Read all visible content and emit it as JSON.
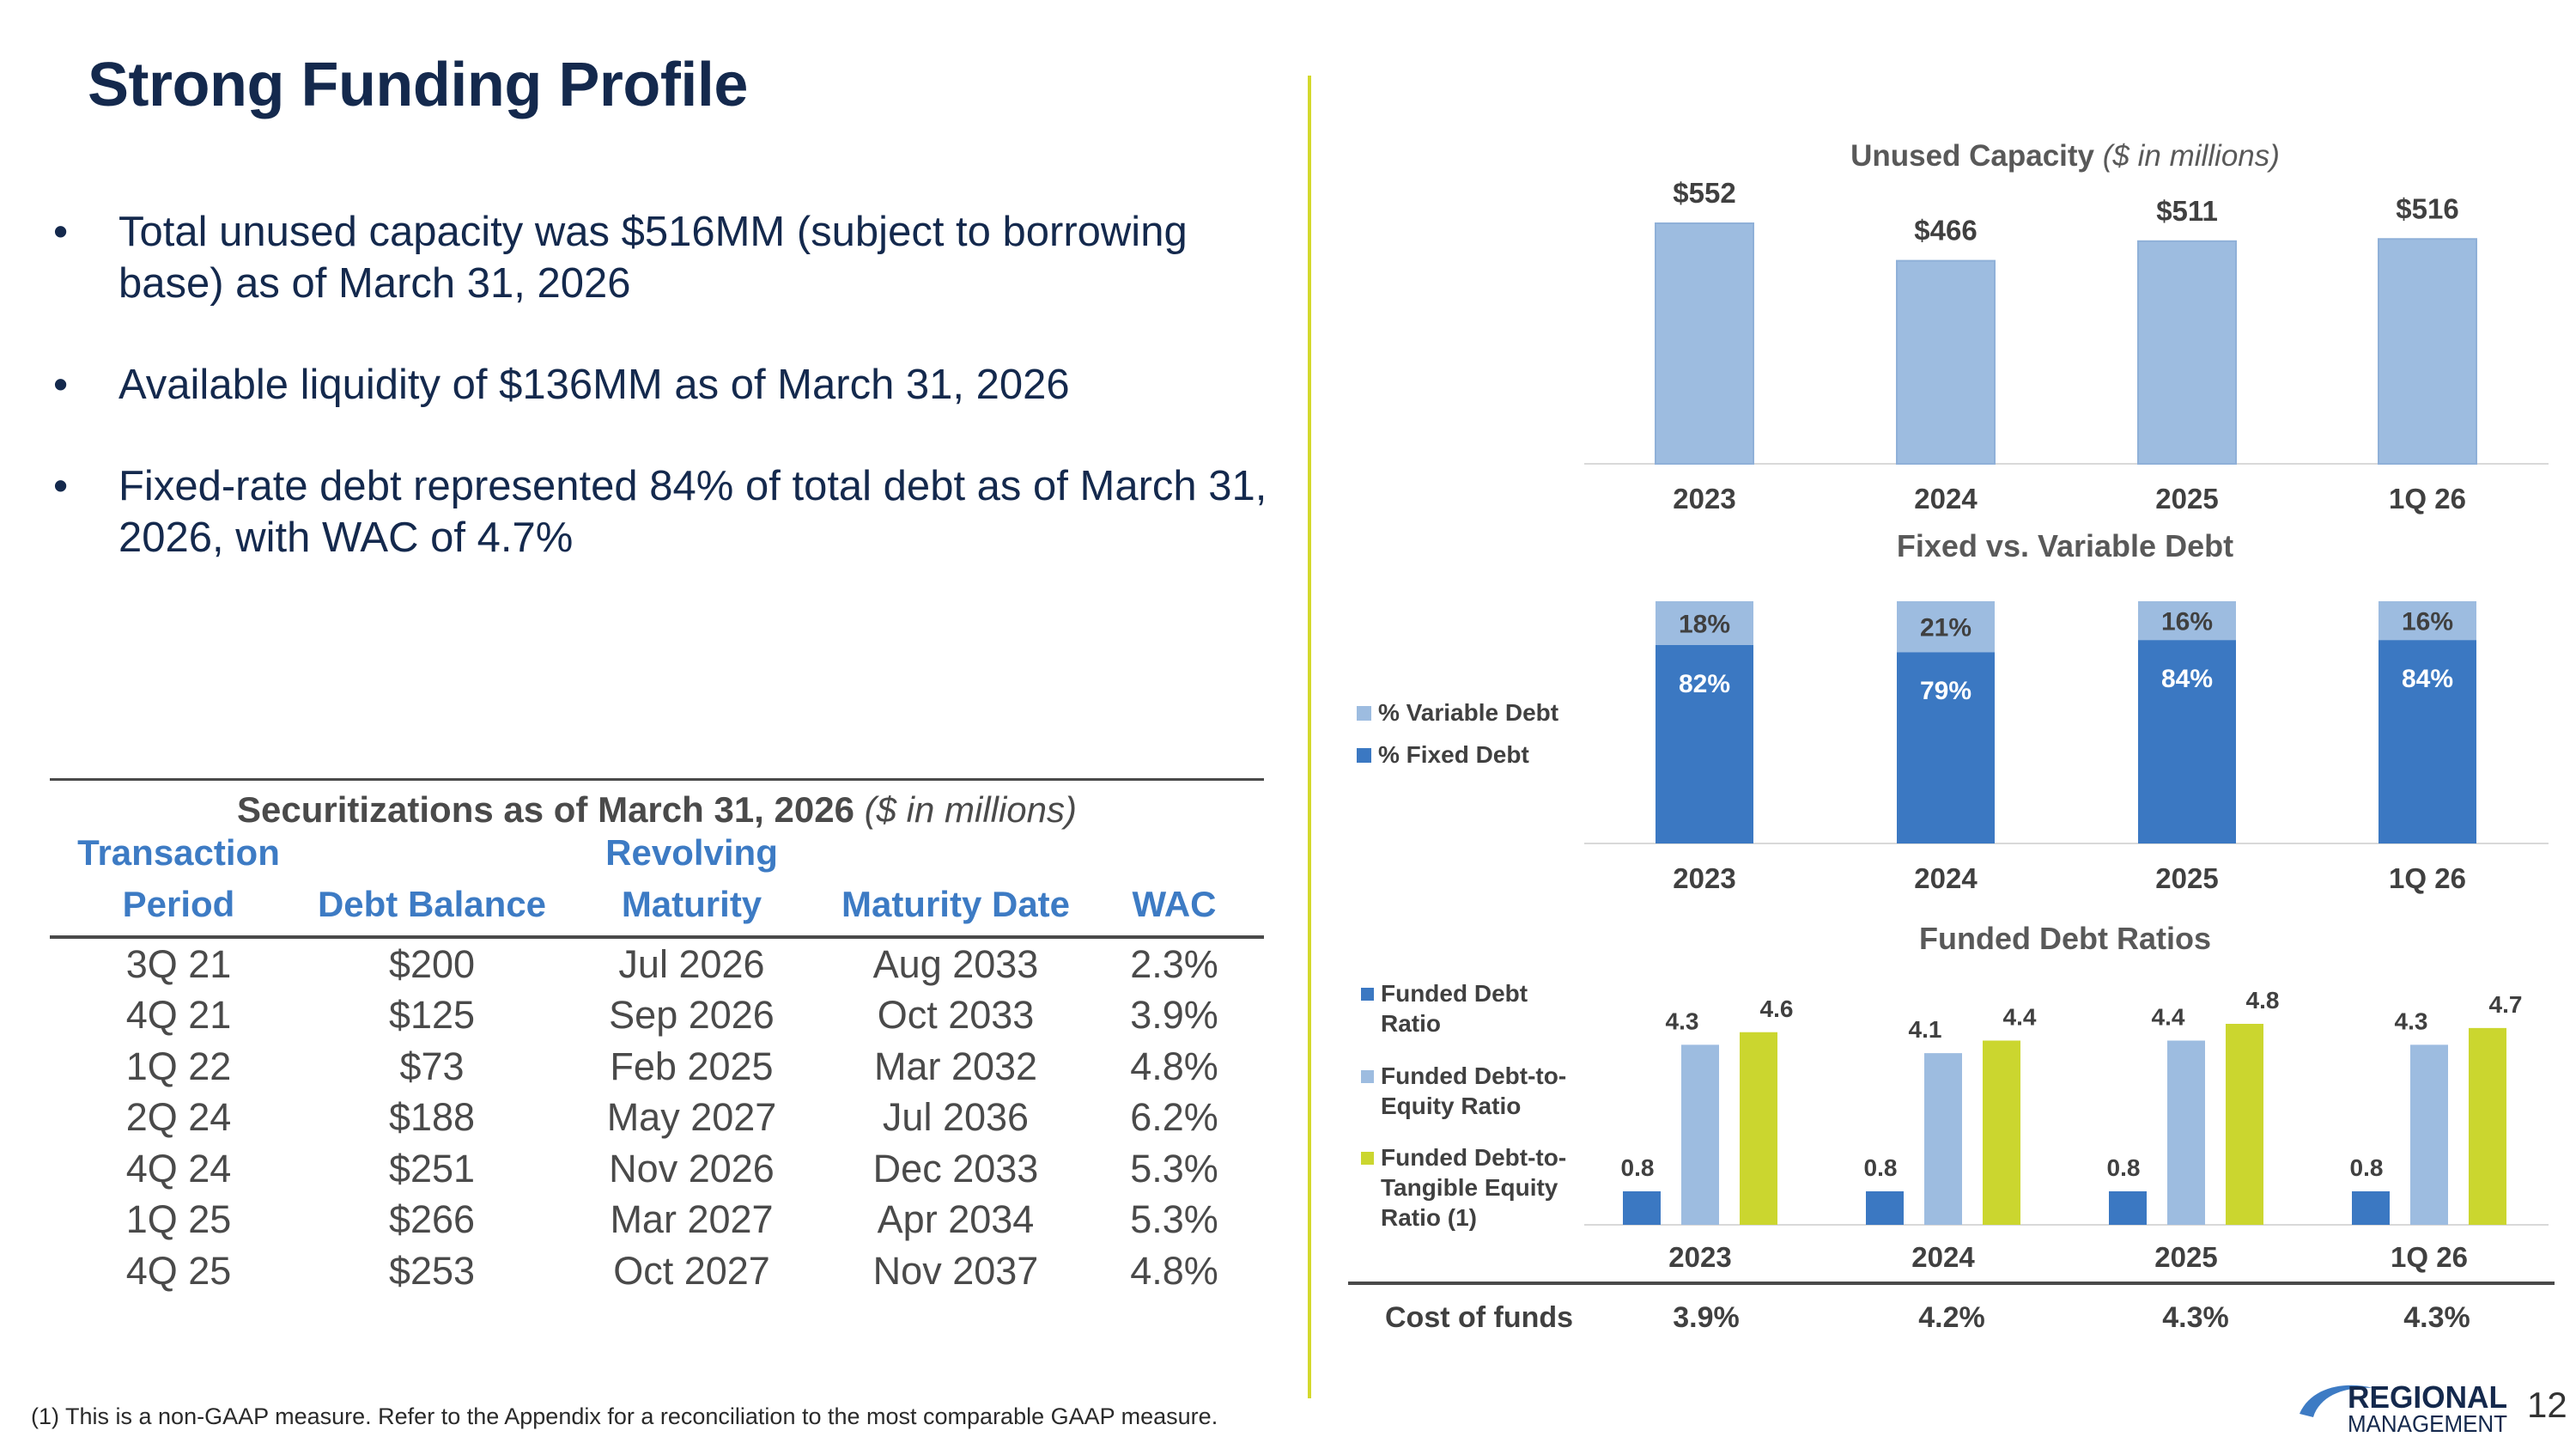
{
  "page": {
    "title": "Strong Funding Profile",
    "bullets": [
      "Total unused capacity was $516MM (subject to borrowing base) as of March 31, 2026",
      "Available liquidity of $136MM as of March 31, 2026",
      "Fixed-rate debt represented 84% of total debt as of March 31, 2026, with WAC of 4.7%"
    ],
    "footnote": "(1) This is a non-GAAP measure. Refer to the Appendix for a reconciliation to the most comparable GAAP measure.",
    "page_number": "12",
    "logo": {
      "line1": "REGIONAL",
      "line2": "MANAGEMENT",
      "color": "#14294d",
      "accent": "#3d7bc4"
    }
  },
  "securitizations": {
    "caption": "Securitizations as of March 31, 2026",
    "caption_units": "($ in millions)",
    "headers": [
      [
        "Transaction",
        "Period"
      ],
      [
        "",
        "Debt Balance"
      ],
      [
        "Revolving",
        "Maturity"
      ],
      [
        "",
        "Maturity Date"
      ],
      [
        "",
        "WAC"
      ]
    ],
    "rows": [
      [
        "3Q 21",
        "$200",
        "Jul 2026",
        "Aug 2033",
        "2.3%"
      ],
      [
        "4Q 21",
        "$125",
        "Sep 2026",
        "Oct 2033",
        "3.9%"
      ],
      [
        "1Q 22",
        "$73",
        "Feb 2025",
        "Mar 2032",
        "4.8%"
      ],
      [
        "2Q 24",
        "$188",
        "May 2027",
        "Jul 2036",
        "6.2%"
      ],
      [
        "4Q 24",
        "$251",
        "Nov 2026",
        "Dec 2033",
        "5.3%"
      ],
      [
        "1Q 25",
        "$266",
        "Mar 2027",
        "Apr 2034",
        "5.3%"
      ],
      [
        "4Q 25",
        "$253",
        "Oct 2027",
        "Nov 2037",
        "4.8%"
      ]
    ]
  },
  "chart_data": [
    {
      "type": "bar",
      "title": "Unused Capacity",
      "title_units": "($ in millions)",
      "categories": [
        "2023",
        "2024",
        "2025",
        "1Q 26"
      ],
      "values": [
        552,
        466,
        511,
        516
      ],
      "data_labels": [
        "$552",
        "$466",
        "$511",
        "$516"
      ],
      "ylim": [
        0,
        600
      ],
      "grid": false,
      "color": "#9dbce0"
    },
    {
      "type": "bar",
      "stacked": true,
      "title": "Fixed vs. Variable Debt",
      "categories": [
        "2023",
        "2024",
        "2025",
        "1Q 26"
      ],
      "series": [
        {
          "name": "% Fixed Debt",
          "values": [
            82,
            79,
            84,
            84
          ],
          "labels": [
            "82%",
            "79%",
            "84%",
            "84%"
          ],
          "color": "#3b78c2"
        },
        {
          "name": "% Variable Debt",
          "values": [
            18,
            21,
            16,
            16
          ],
          "labels": [
            "18%",
            "21%",
            "16%",
            "16%"
          ],
          "color": "#9dbce0"
        }
      ],
      "ylim": [
        0,
        100
      ],
      "legend": "left",
      "grid": false
    },
    {
      "type": "bar",
      "title": "Funded Debt Ratios",
      "categories": [
        "2023",
        "2024",
        "2025",
        "1Q 26"
      ],
      "series": [
        {
          "name": "Funded Debt Ratio",
          "values": [
            0.8,
            0.8,
            0.8,
            0.8
          ],
          "labels": [
            "0.8",
            "0.8",
            "0.8",
            "0.8"
          ],
          "color": "#3b78c2"
        },
        {
          "name": "Funded Debt-to-Equity Ratio",
          "values": [
            4.3,
            4.1,
            4.4,
            4.3
          ],
          "labels": [
            "4.3",
            "4.1",
            "4.4",
            "4.3"
          ],
          "color": "#9dbce0"
        },
        {
          "name": "Funded Debt-to-Tangible Equity Ratio (1)",
          "values": [
            4.6,
            4.4,
            4.8,
            4.7
          ],
          "labels": [
            "4.6",
            "4.4",
            "4.8",
            "4.7"
          ],
          "color": "#cbd62f"
        }
      ],
      "ylim": [
        0,
        5.5
      ],
      "legend": "left",
      "grid": false
    }
  ],
  "cost_of_funds": {
    "label": "Cost of funds",
    "values": [
      "3.9%",
      "4.2%",
      "4.3%",
      "4.3%"
    ]
  }
}
